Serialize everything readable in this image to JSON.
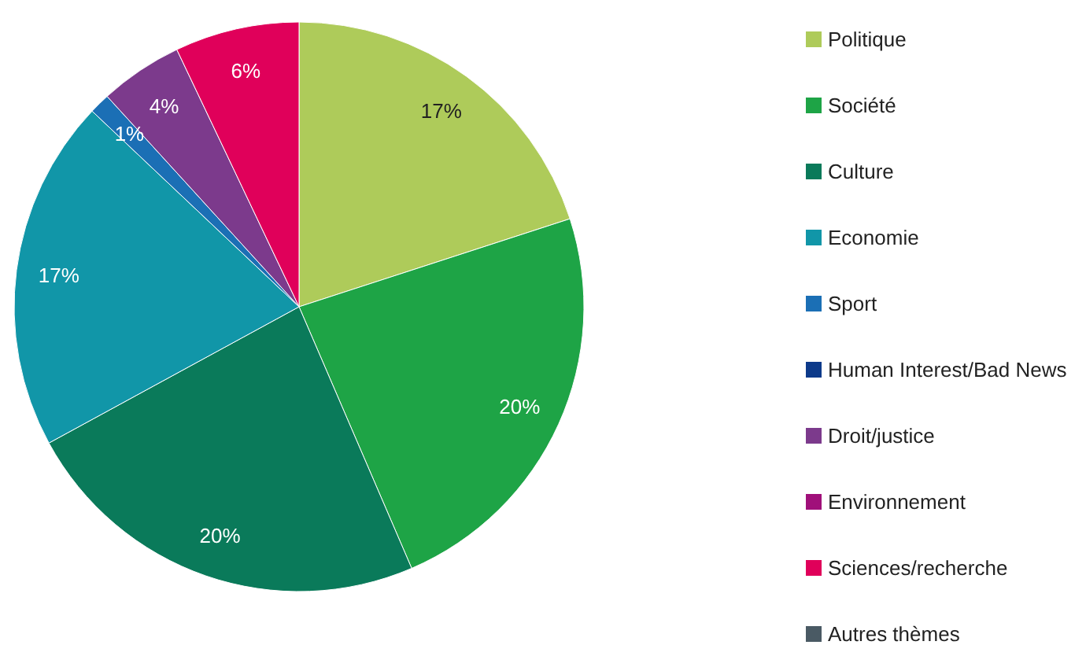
{
  "chart_data": {
    "type": "pie",
    "categories": [
      "Politique",
      "Société",
      "Culture",
      "Economie",
      "Sport",
      "Human Interest/Bad News",
      "Droit/justice",
      "Environnement",
      "Sciences/recherche",
      "Autres thèmes"
    ],
    "values": [
      17,
      20,
      20,
      17,
      1,
      0,
      4,
      0,
      6,
      0
    ],
    "value_labels": [
      "17%",
      "20%",
      "20%",
      "17%",
      "1%",
      null,
      "4%",
      null,
      "6%",
      null
    ],
    "colors": [
      "#aecb5a",
      "#1ea446",
      "#0a7a5a",
      "#1196a8",
      "#1b6fb5",
      "#0d3a8a",
      "#7c3a8c",
      "#a0107a",
      "#e0005a",
      "#4a5a64"
    ],
    "legend": "right"
  }
}
